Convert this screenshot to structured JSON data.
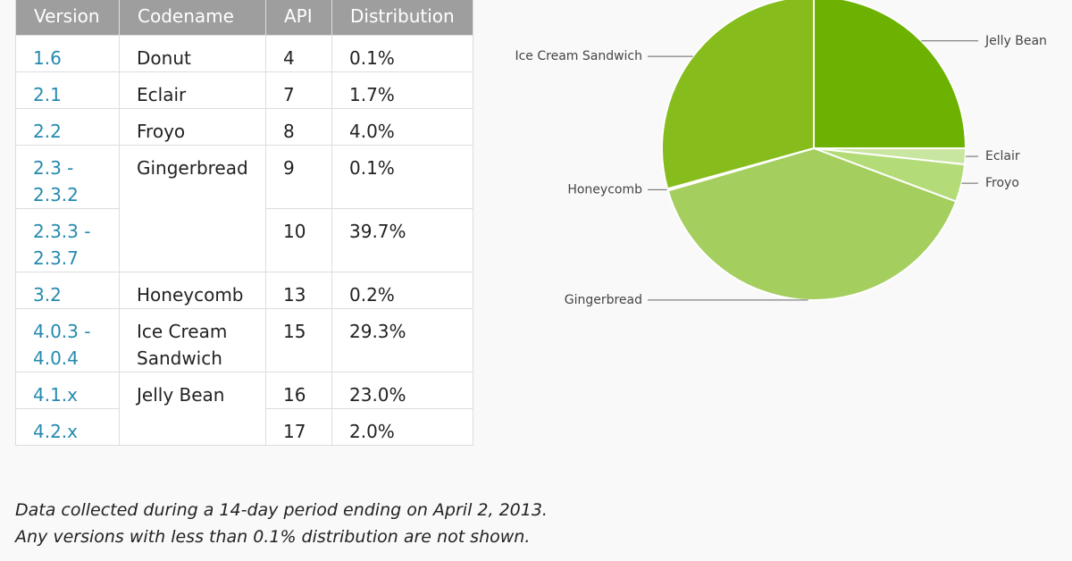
{
  "table": {
    "header": [
      "Version",
      "Codename",
      "API",
      "Distribution"
    ],
    "rows": [
      {
        "version": "1.6",
        "codename": "Donut",
        "api": "4",
        "distribution": "0.1%"
      },
      {
        "version": "2.1",
        "codename": "Eclair",
        "api": "7",
        "distribution": "1.7%"
      },
      {
        "version": "2.2",
        "codename": "Froyo",
        "api": "8",
        "distribution": "4.0%"
      },
      {
        "version": "2.3 - 2.3.2",
        "codename": "Gingerbread",
        "api": "9",
        "distribution": "0.1%"
      },
      {
        "version": "2.3.3 - 2.3.7",
        "api": "10",
        "distribution": "39.7%"
      },
      {
        "version": "3.2",
        "codename": "Honeycomb",
        "api": "13",
        "distribution": "0.2%"
      },
      {
        "version": "4.0.3 - 4.0.4",
        "codename": "Ice Cream Sandwich",
        "api": "15",
        "distribution": "29.3%"
      },
      {
        "version": "4.1.x",
        "codename": "Jelly Bean",
        "api": "16",
        "distribution": "23.0%"
      },
      {
        "version": "4.2.x",
        "api": "17",
        "distribution": "2.0%"
      }
    ]
  },
  "notes": [
    "Data collected during a 14-day period ending on April 2, 2013.",
    "Any versions with less than 0.1% distribution are not shown."
  ],
  "chart_data": {
    "type": "pie",
    "categories": [
      "Jelly Bean",
      "Eclair",
      "Froyo",
      "Gingerbread",
      "Honeycomb",
      "Ice Cream Sandwich"
    ],
    "values": [
      25.0,
      1.7,
      4.0,
      39.8,
      0.2,
      29.3
    ],
    "colors": [
      "#6db200",
      "#c9e6a0",
      "#b3dc78",
      "#a4ce5e",
      "#d4eab0",
      "#86bc1c"
    ]
  }
}
